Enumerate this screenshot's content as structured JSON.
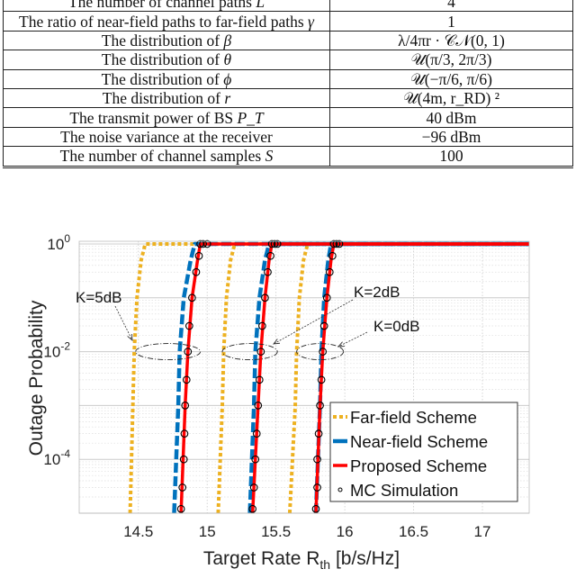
{
  "table": {
    "rows": [
      {
        "label": "The number of channel paths ",
        "sym": "L",
        "value": "4"
      },
      {
        "label": "The ratio of near-field paths to far-field paths ",
        "sym": "γ",
        "value": "1"
      },
      {
        "label": "The distribution of ",
        "sym": "β",
        "value": "λ/4πr · 𝒞𝒩(0, 1)"
      },
      {
        "label": "The distribution of ",
        "sym": "θ",
        "value": "𝒰(π/3, 2π/3)"
      },
      {
        "label": "The distribution of ",
        "sym": "ϕ",
        "value": "𝒰(−π/6, π/6)"
      },
      {
        "label": "The distribution of ",
        "sym": "r",
        "value": "𝒰(4m, r_RD) ²"
      },
      {
        "label": "The transmit power of BS ",
        "sym": "P_T",
        "value": "40 dBm"
      },
      {
        "label": "The noise variance at the receiver",
        "sym": "",
        "value": "−96 dBm"
      },
      {
        "label": "The number of channel samples ",
        "sym": "S",
        "value": "100"
      }
    ]
  },
  "chart_data": {
    "type": "line",
    "xlabel": "Target Rate R",
    "xlabel_sub": "th",
    "xlabel_unit": " [b/s/Hz]",
    "ylabel": "Outage Probability",
    "xlim": [
      14.07,
      17.34
    ],
    "ylim": [
      1e-05,
      1.12
    ],
    "yscale": "log",
    "grid": true,
    "xticks": [
      14.5,
      15,
      15.5,
      16,
      16.5,
      17
    ],
    "xtick_labels": [
      "14.5",
      "15",
      "15.5",
      "16",
      "16.5",
      "17"
    ],
    "yticks": [
      {
        "base": "10",
        "exp": "0",
        "value": 1
      },
      {
        "base": "10",
        "exp": "-2",
        "value": 0.01
      },
      {
        "base": "10",
        "exp": "-4",
        "value": 0.0001
      }
    ],
    "legend_position": "bottom-right",
    "colors": {
      "far": "#EDB120",
      "near": "#0072BD",
      "proposed": "#FF0000",
      "mc": "#000000"
    },
    "curve_y": [
      1e-05,
      0.001,
      0.01,
      0.1,
      0.5,
      1
    ],
    "series": [
      {
        "name": "Far-field Scheme",
        "style": "dotted",
        "color": "#EDB120",
        "groups": [
          {
            "K": "K=5dB",
            "x": [
              14.44,
              14.46,
              14.47,
              14.49,
              14.52,
              14.55
            ]
          },
          {
            "K": "K=2dB",
            "x": [
              15.08,
              15.11,
              15.12,
              15.14,
              15.17,
              15.2
            ]
          },
          {
            "K": "K=0dB",
            "x": [
              15.6,
              15.64,
              15.65,
              15.67,
              15.7,
              15.73
            ]
          }
        ]
      },
      {
        "name": "Near-field Scheme",
        "style": "dashed",
        "color": "#0072BD",
        "groups": [
          {
            "K": "K=5dB",
            "x": [
              14.76,
              14.79,
              14.8,
              14.83,
              14.88,
              14.91
            ]
          },
          {
            "K": "K=2dB",
            "x": [
              15.31,
              15.34,
              15.35,
              15.38,
              15.42,
              15.45
            ]
          },
          {
            "K": "K=0dB",
            "x": [
              15.79,
              15.82,
              15.83,
              15.85,
              15.88,
              15.9
            ]
          }
        ]
      },
      {
        "name": "Proposed Scheme",
        "style": "solid",
        "color": "#FF0000",
        "groups": [
          {
            "K": "K=5dB",
            "x": [
              14.81,
              14.84,
              14.86,
              14.89,
              14.93,
              14.95
            ]
          },
          {
            "K": "K=2dB",
            "x": [
              15.33,
              15.37,
              15.39,
              15.42,
              15.45,
              15.47
            ]
          },
          {
            "K": "K=0dB",
            "x": [
              15.79,
              15.82,
              15.84,
              15.87,
              15.9,
              15.92
            ]
          }
        ]
      }
    ],
    "mc": {
      "name": "MC Simulation",
      "y": [
        1.2e-05,
        3e-05,
        0.0001,
        0.0003,
        0.001,
        0.003,
        0.01,
        0.03,
        0.1,
        0.3,
        0.6,
        1,
        1,
        1
      ],
      "groups": [
        {
          "K": "K=5dB",
          "x": [
            14.81,
            14.82,
            14.83,
            14.835,
            14.84,
            14.85,
            14.86,
            14.87,
            14.89,
            14.92,
            14.94,
            14.95,
            14.97,
            15.0
          ]
        },
        {
          "K": "K=2dB",
          "x": [
            15.33,
            15.34,
            15.35,
            15.36,
            15.37,
            15.38,
            15.39,
            15.4,
            15.42,
            15.44,
            15.46,
            15.47,
            15.49,
            15.51
          ]
        },
        {
          "K": "K=0dB",
          "x": [
            15.79,
            15.8,
            15.8,
            15.81,
            15.82,
            15.83,
            15.84,
            15.85,
            15.87,
            15.89,
            15.91,
            15.92,
            15.94,
            15.96
          ]
        }
      ]
    },
    "annotations": [
      {
        "text": "K=5dB",
        "ellipse_x": [
          14.48,
          14.95
        ],
        "y": 0.01
      },
      {
        "text": "K=2dB",
        "ellipse_x": [
          15.11,
          15.51
        ],
        "y": 0.01
      },
      {
        "text": "K=0dB",
        "ellipse_x": [
          15.65,
          15.99
        ],
        "y": 0.01
      }
    ]
  }
}
